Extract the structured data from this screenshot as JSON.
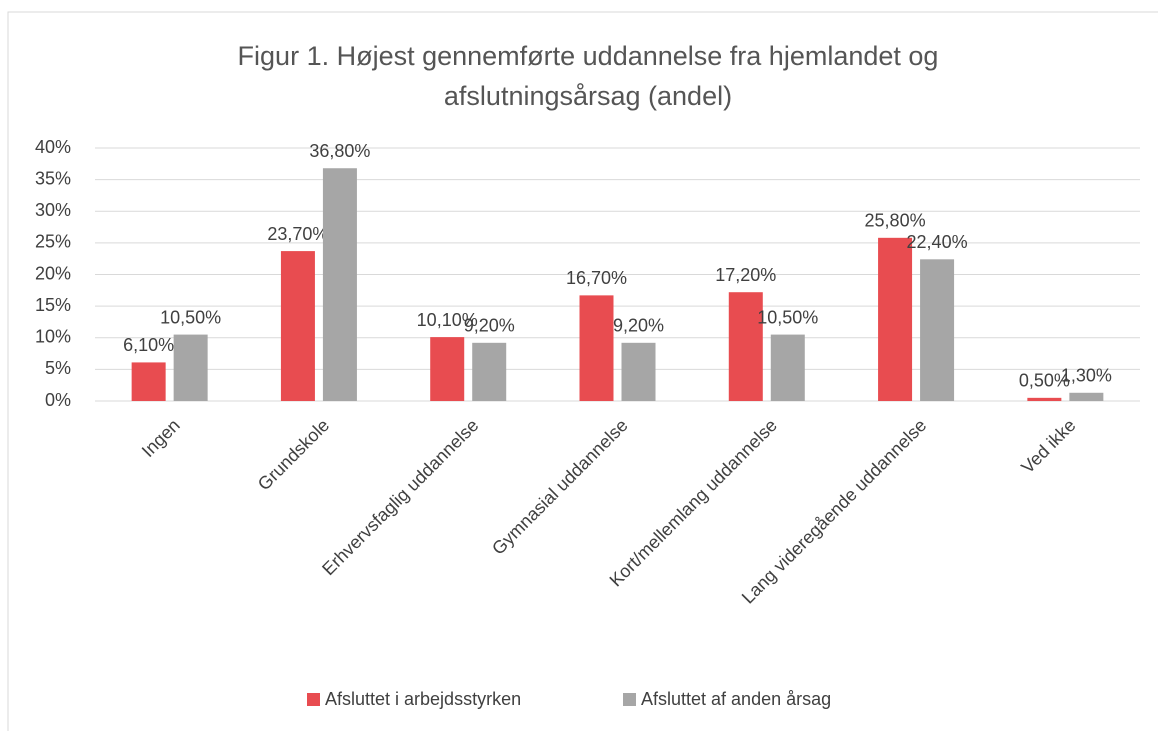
{
  "chart_data": {
    "type": "bar",
    "title": [
      "Figur 1. Højest gennemførte uddannelse fra hjemlandet og",
      "afslutningsårsag (andel)"
    ],
    "categories": [
      "Ingen",
      "Grundskole",
      "Erhvervsfaglig uddannelse",
      "Gymnasial uddannelse",
      "Kort/mellemlang uddannelse",
      "Lang videregående uddannelse",
      "Ved ikke"
    ],
    "series": [
      {
        "name": "Afsluttet i arbejdsstyrken",
        "color": "#e84c50",
        "values": [
          6.1,
          23.7,
          10.1,
          16.7,
          17.2,
          25.8,
          0.5
        ],
        "value_labels": [
          "6,10%",
          "23,70%",
          "10,10%",
          "16,70%",
          "17,20%",
          "25,80%",
          "0,50%"
        ]
      },
      {
        "name": "Afsluttet af anden årsag",
        "color": "#a6a6a6",
        "values": [
          10.5,
          36.8,
          9.2,
          9.2,
          10.5,
          22.4,
          1.3
        ],
        "value_labels": [
          "10,50%",
          "36,80%",
          "9,20%",
          "9,20%",
          "10,50%",
          "22,40%",
          "1,30%"
        ]
      }
    ],
    "ylim": [
      0,
      40
    ],
    "yticks": [
      {
        "value": 0,
        "label": "0%"
      },
      {
        "value": 5,
        "label": "5%"
      },
      {
        "value": 10,
        "label": "10%"
      },
      {
        "value": 15,
        "label": "15%"
      },
      {
        "value": 20,
        "label": "20%"
      },
      {
        "value": 25,
        "label": "25%"
      },
      {
        "value": 30,
        "label": "30%"
      },
      {
        "value": 35,
        "label": "35%"
      },
      {
        "value": 40,
        "label": "40%"
      }
    ],
    "grid": true,
    "legend": "bottom"
  }
}
